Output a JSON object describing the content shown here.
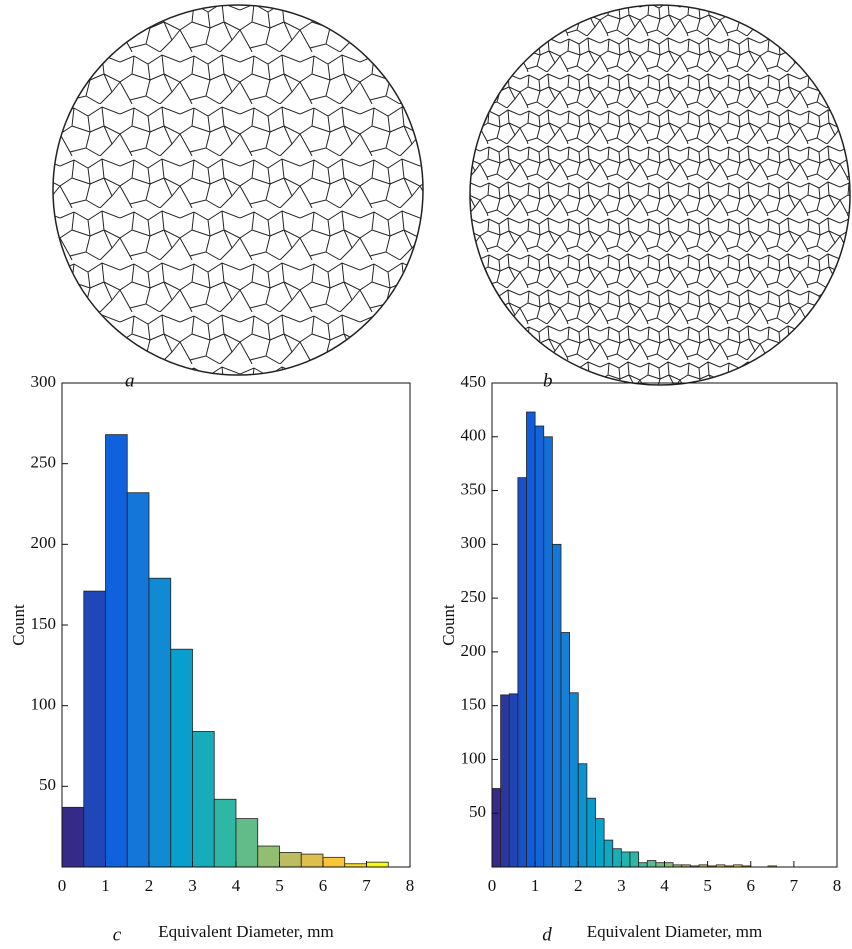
{
  "images": [
    {
      "label": "a"
    },
    {
      "label": "b"
    }
  ],
  "chart_data": [
    {
      "type": "histogram",
      "panel_label": "c",
      "xlabel": "Equivalent Diameter, mm",
      "ylabel": "Count",
      "bins": [
        0,
        0.5,
        1,
        1.5,
        2,
        2.5,
        3,
        3.5,
        4,
        4.5,
        5,
        5.5,
        6,
        6.5,
        7,
        7.5
      ],
      "values": [
        37,
        171,
        268,
        232,
        179,
        135,
        84,
        42,
        30,
        13,
        9,
        8,
        6,
        2,
        3
      ],
      "colormap": [
        "#352a87",
        "#0f5cdd",
        "#1481d6",
        "#06a4ca",
        "#2eb7a4",
        "#87bf77",
        "#d1bb59",
        "#fec832",
        "#f9fb0e"
      ],
      "xlim": [
        0,
        8
      ],
      "xticks": [
        0,
        1,
        2,
        3,
        4,
        5,
        6,
        7,
        8
      ],
      "ylim": [
        0,
        300
      ],
      "yticks": [
        50,
        100,
        150,
        200,
        250,
        300
      ]
    },
    {
      "type": "histogram",
      "panel_label": "d",
      "xlabel": "Equivalent Diameter, mm",
      "ylabel": "Count",
      "bins": [
        0,
        0.2,
        0.4,
        0.6,
        0.8,
        1,
        1.2,
        1.4,
        1.6,
        1.8,
        2,
        2.2,
        2.4,
        2.6,
        2.8,
        3,
        3.2,
        3.4,
        3.6,
        3.8,
        4,
        4.2,
        4.4,
        4.6,
        4.8,
        5,
        5.2,
        5.4,
        5.6,
        5.8,
        6,
        6.2,
        6.4,
        6.6
      ],
      "values": [
        73,
        160,
        161,
        362,
        423,
        410,
        400,
        300,
        218,
        162,
        96,
        64,
        45,
        25,
        17,
        14,
        14,
        4,
        6,
        4,
        4,
        2,
        2,
        1,
        2,
        1,
        2,
        1,
        2,
        1,
        0,
        0,
        1
      ],
      "colormap": [
        "#352a87",
        "#0f5cdd",
        "#1481d6",
        "#06a4ca",
        "#2eb7a4",
        "#87bf77",
        "#d1bb59",
        "#fec832",
        "#f9fb0e"
      ],
      "xlim": [
        0,
        8
      ],
      "xticks": [
        0,
        1,
        2,
        3,
        4,
        5,
        6,
        7,
        8
      ],
      "ylim": [
        0,
        450
      ],
      "yticks": [
        50,
        100,
        150,
        200,
        250,
        300,
        350,
        400,
        450
      ]
    }
  ]
}
